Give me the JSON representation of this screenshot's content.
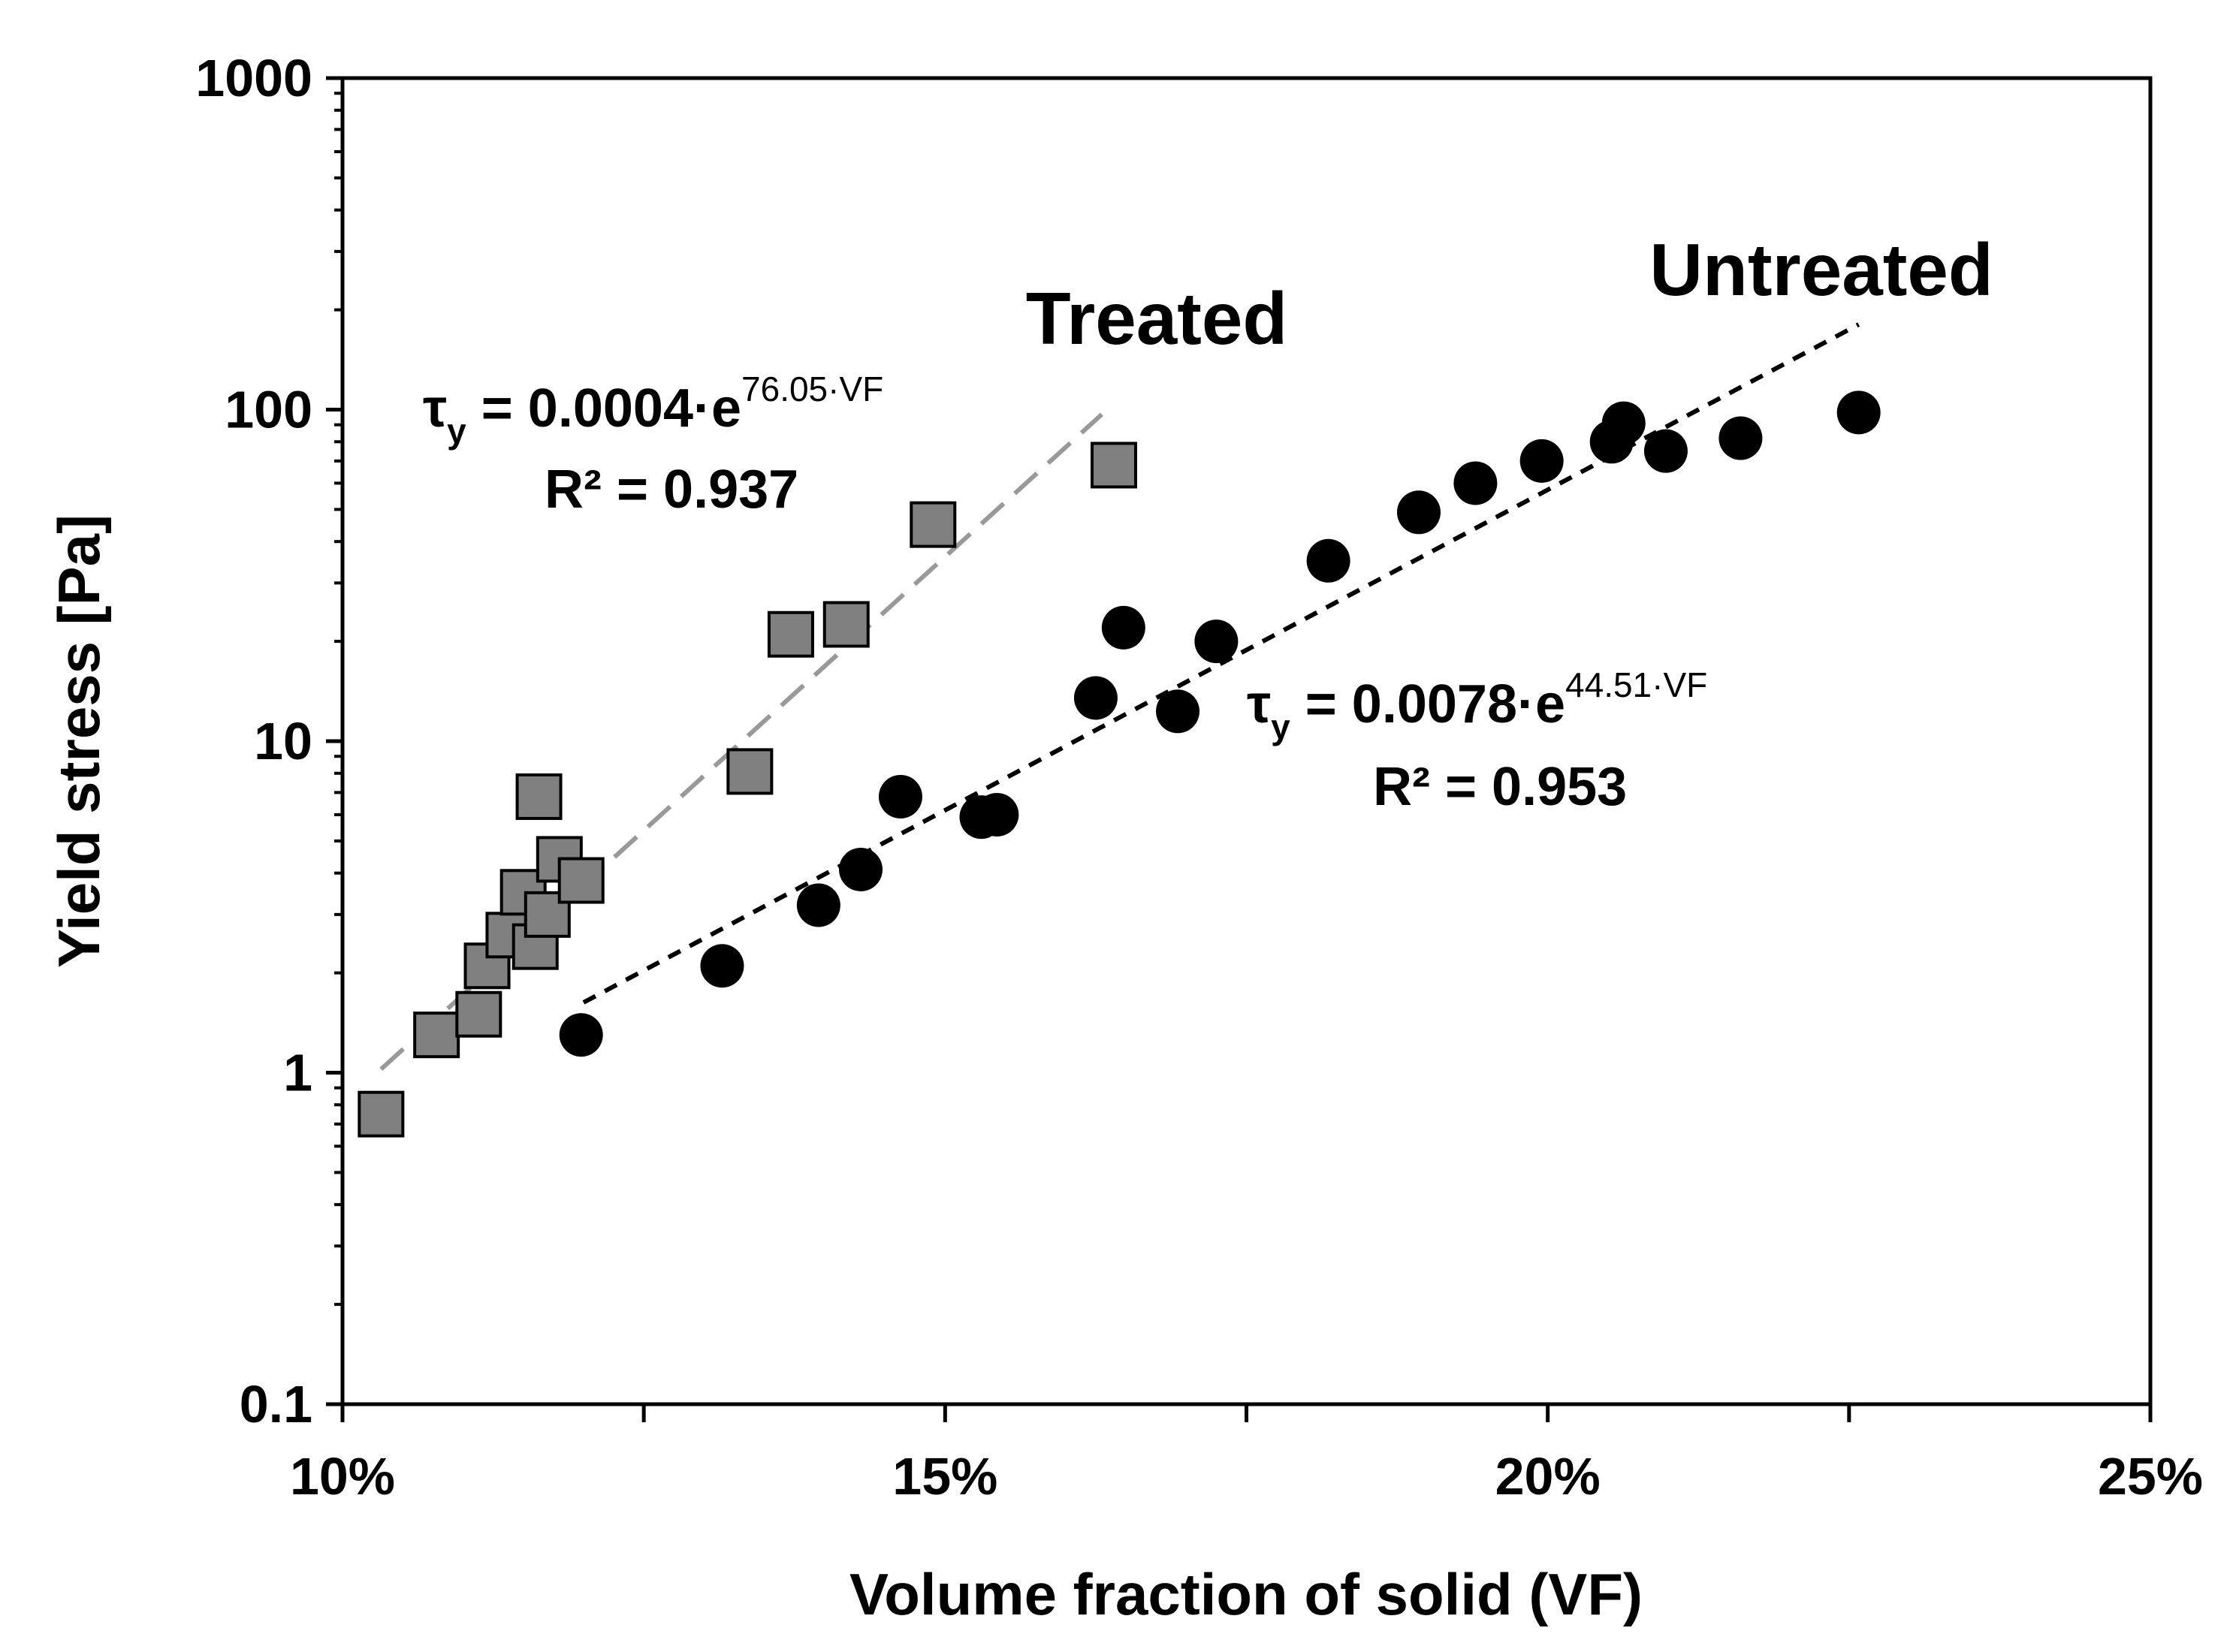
{
  "chart_data": {
    "type": "scatter",
    "xlabel": "Volume fraction of solid (VF)",
    "ylabel": "Yield stress [Pa]",
    "xlim": [
      0.1,
      0.25
    ],
    "ylim": [
      0.1,
      1000
    ],
    "yscale": "log",
    "xticks": [
      0.1,
      0.15,
      0.2,
      0.25
    ],
    "xtick_labels": [
      "10%",
      "15%",
      "20%",
      "25%"
    ],
    "yticks": [
      0.1,
      1,
      10,
      100,
      1000
    ],
    "ytick_labels": [
      "0.1",
      "1",
      "10",
      "100",
      "1000"
    ],
    "grid": false,
    "series": [
      {
        "name": "Treated",
        "marker": "square",
        "color": "#808080",
        "points": [
          {
            "x": 0.1032,
            "y": 0.75
          },
          {
            "x": 0.1078,
            "y": 1.3
          },
          {
            "x": 0.1113,
            "y": 1.5
          },
          {
            "x": 0.112,
            "y": 2.1
          },
          {
            "x": 0.1138,
            "y": 2.6
          },
          {
            "x": 0.115,
            "y": 3.5
          },
          {
            "x": 0.116,
            "y": 2.4
          },
          {
            "x": 0.1163,
            "y": 6.8
          },
          {
            "x": 0.117,
            "y": 3.0
          },
          {
            "x": 0.118,
            "y": 4.4
          },
          {
            "x": 0.1198,
            "y": 3.8
          },
          {
            "x": 0.1338,
            "y": 8.1
          },
          {
            "x": 0.1372,
            "y": 21
          },
          {
            "x": 0.1418,
            "y": 22.5
          },
          {
            "x": 0.149,
            "y": 45
          },
          {
            "x": 0.164,
            "y": 68
          }
        ],
        "fit": {
          "equation": "τy = 0.0004·e^(76.05·VF)",
          "a": 0.0004,
          "b": 76.05,
          "r2": "0.937",
          "x_range": [
            0.1032,
            0.163
          ],
          "style": "long-dash",
          "color": "#999999"
        }
      },
      {
        "name": "Untreated",
        "marker": "circle",
        "color": "#000000",
        "points": [
          {
            "x": 0.1198,
            "y": 1.3
          },
          {
            "x": 0.1315,
            "y": 2.1
          },
          {
            "x": 0.1395,
            "y": 3.2
          },
          {
            "x": 0.143,
            "y": 4.1
          },
          {
            "x": 0.1463,
            "y": 6.8
          },
          {
            "x": 0.153,
            "y": 5.9
          },
          {
            "x": 0.1543,
            "y": 6.0
          },
          {
            "x": 0.1625,
            "y": 13.5
          },
          {
            "x": 0.1648,
            "y": 22
          },
          {
            "x": 0.1693,
            "y": 12.3
          },
          {
            "x": 0.1725,
            "y": 20
          },
          {
            "x": 0.1818,
            "y": 35
          },
          {
            "x": 0.1893,
            "y": 49
          },
          {
            "x": 0.194,
            "y": 60
          },
          {
            "x": 0.1995,
            "y": 70
          },
          {
            "x": 0.2053,
            "y": 80
          },
          {
            "x": 0.2063,
            "y": 91
          },
          {
            "x": 0.2098,
            "y": 75
          },
          {
            "x": 0.216,
            "y": 82
          },
          {
            "x": 0.2258,
            "y": 98
          }
        ],
        "fit": {
          "equation": "τy = 0.0078·e^(44.51·VF)",
          "a": 0.0078,
          "b": 44.51,
          "r2": "0.953",
          "x_range": [
            0.12,
            0.2258
          ],
          "style": "short-dash",
          "color": "#000000"
        }
      }
    ],
    "annotations": {
      "treated_label": "Treated",
      "untreated_label": "Untreated",
      "treated_eq": {
        "lhs": "τ",
        "sub": "y",
        "coef": " = 0.0004·e",
        "exp": "76.05·VF",
        "r2": "R² = 0.937"
      },
      "untreated_eq": {
        "lhs": "τ",
        "sub": "y",
        "coef": " = 0.0078·e",
        "exp": "44.51·VF",
        "r2": "R² = 0.953"
      }
    }
  }
}
